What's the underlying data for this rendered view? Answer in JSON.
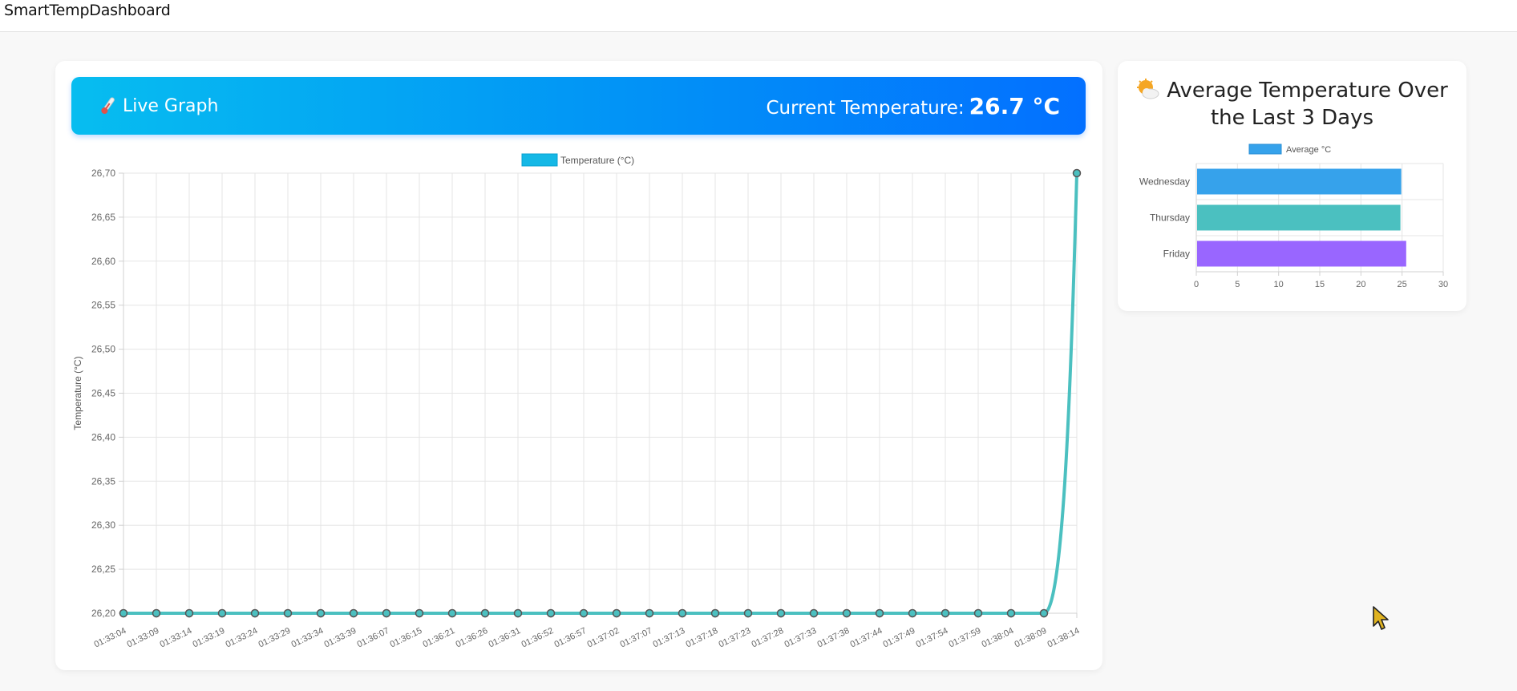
{
  "app": {
    "title": "SmartTempDashboard"
  },
  "live_panel": {
    "title": "Live Graph",
    "icon": "thermometer-icon",
    "current_label": "Current Temperature:",
    "current_value": "26.7 °C"
  },
  "avg_panel": {
    "title": "Average Temperature Over the Last 3 Days",
    "icon": "sun-behind-cloud-icon"
  },
  "colors": {
    "header_gradient_start": "#07bdf0",
    "header_gradient_end": "#0370ff",
    "line": "#4bc0c0",
    "legend_fill": "#15b8e6",
    "wednesday": "#36a2eb",
    "thursday": "#4bc0c0",
    "friday": "#9966ff"
  },
  "chart_data": [
    {
      "type": "line",
      "title": "",
      "legend": "Temperature (°C)",
      "xlabel": "",
      "ylabel": "Temperature (°C)",
      "ylim": [
        26.2,
        26.7
      ],
      "yticks": [
        "26,70",
        "26,65",
        "26,60",
        "26,55",
        "26,50",
        "26,45",
        "26,40",
        "26,35",
        "26,30",
        "26,25",
        "26,20"
      ],
      "grid": true,
      "legend_position": "top",
      "x": [
        "01:33:04",
        "01:33:09",
        "01:33:14",
        "01:33:19",
        "01:33:24",
        "01:33:29",
        "01:33:34",
        "01:33:39",
        "01:36:07",
        "01:36:15",
        "01:36:21",
        "01:36:26",
        "01:36:31",
        "01:36:52",
        "01:36:57",
        "01:37:02",
        "01:37:07",
        "01:37:13",
        "01:37:18",
        "01:37:23",
        "01:37:28",
        "01:37:33",
        "01:37:38",
        "01:37:44",
        "01:37:49",
        "01:37:54",
        "01:37:59",
        "01:38:04",
        "01:38:09",
        "01:38:14"
      ],
      "series": [
        {
          "name": "Temperature (°C)",
          "values": [
            26.2,
            26.2,
            26.2,
            26.2,
            26.2,
            26.2,
            26.2,
            26.2,
            26.2,
            26.2,
            26.2,
            26.2,
            26.2,
            26.2,
            26.2,
            26.2,
            26.2,
            26.2,
            26.2,
            26.2,
            26.2,
            26.2,
            26.2,
            26.2,
            26.2,
            26.2,
            26.2,
            26.2,
            26.2,
            26.7
          ]
        }
      ]
    },
    {
      "type": "bar",
      "orientation": "horizontal",
      "title": "",
      "legend": "Average °C",
      "legend_position": "top",
      "grid": true,
      "xlim": [
        0,
        30
      ],
      "xticks": [
        "0",
        "5",
        "10",
        "15",
        "20",
        "25",
        "30"
      ],
      "categories": [
        "Wednesday",
        "Thursday",
        "Friday"
      ],
      "series": [
        {
          "name": "Average °C",
          "values": [
            24.9,
            24.8,
            25.5
          ]
        }
      ]
    }
  ]
}
